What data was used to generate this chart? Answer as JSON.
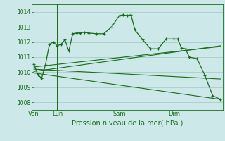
{
  "background_color": "#cce8e8",
  "grid_color": "#aacccc",
  "line_color": "#1a6b1a",
  "title": "Pression niveau de la mer( hPa )",
  "ylim": [
    1007.5,
    1014.5
  ],
  "yticks": [
    1008,
    1009,
    1010,
    1011,
    1012,
    1013,
    1014
  ],
  "day_labels": [
    "Ven",
    "Lun",
    "Sam",
    "Dim"
  ],
  "day_positions": [
    0,
    3,
    11,
    18
  ],
  "xlim": [
    -0.3,
    24.3
  ],
  "main_line_x": [
    0,
    0.5,
    1,
    1.5,
    2,
    2.5,
    3,
    3.5,
    4,
    4.5,
    5,
    5.5,
    6,
    6.5,
    7,
    8,
    9,
    10,
    11,
    11.5,
    12,
    12.5,
    13,
    14,
    15,
    16,
    17,
    18,
    18.5,
    19,
    19.5,
    20,
    21,
    22,
    23,
    24
  ],
  "main_line": [
    1010.55,
    1009.85,
    1009.6,
    1010.5,
    1011.85,
    1012.0,
    1011.75,
    1011.85,
    1012.15,
    1011.4,
    1012.55,
    1012.6,
    1012.6,
    1012.65,
    1012.6,
    1012.55,
    1012.55,
    1013.0,
    1013.75,
    1013.8,
    1013.75,
    1013.8,
    1012.8,
    1012.15,
    1011.55,
    1011.55,
    1012.2,
    1012.2,
    1012.2,
    1011.6,
    1011.55,
    1011.0,
    1010.9,
    1009.8,
    1008.45,
    1008.2
  ],
  "trend_lines": [
    {
      "x": [
        0,
        24
      ],
      "y": [
        1010.35,
        1011.7
      ]
    },
    {
      "x": [
        0,
        24
      ],
      "y": [
        1010.05,
        1011.75
      ]
    },
    {
      "x": [
        0,
        24
      ],
      "y": [
        1010.2,
        1009.55
      ]
    },
    {
      "x": [
        0,
        24
      ],
      "y": [
        1009.95,
        1008.2
      ]
    }
  ]
}
